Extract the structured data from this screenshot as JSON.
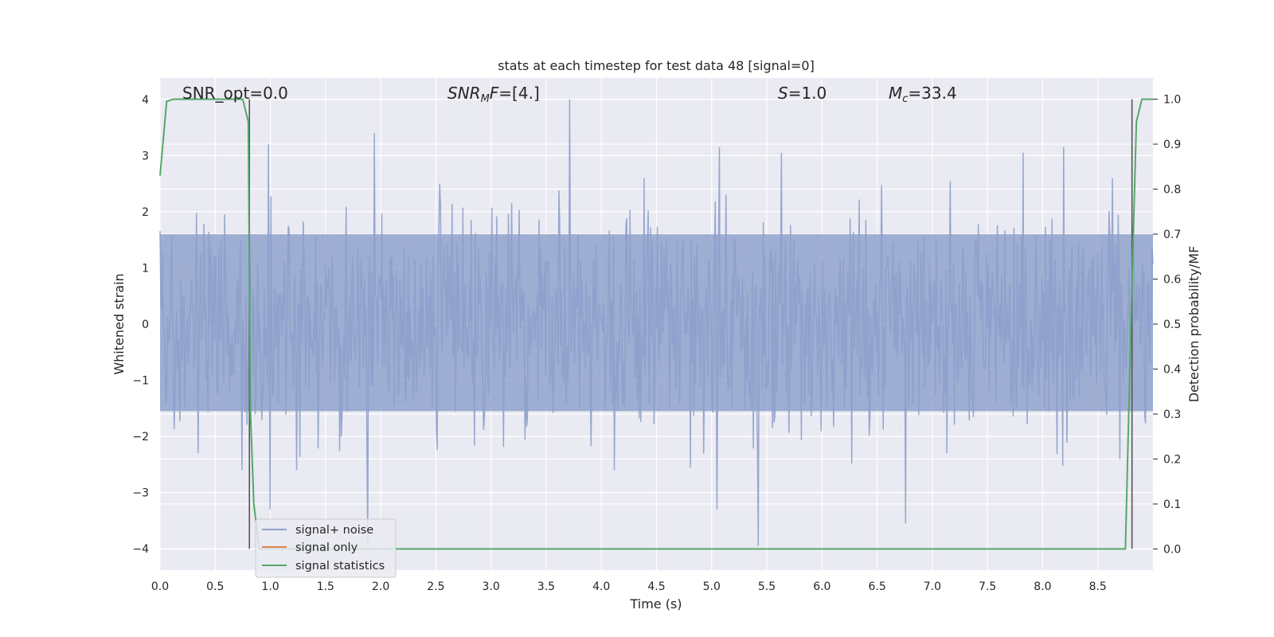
{
  "chart_data": {
    "type": "line",
    "title": "stats at each timestep for test data 48 [signal=0]",
    "xlabel": "Time (s)",
    "ylabel": "Whitened strain",
    "ylabel_right": "Detection probability/MF",
    "xlim": [
      0.0,
      9.0
    ],
    "ylim": [
      -4.38,
      4.38
    ],
    "ylim_right": [
      -0.047,
      1.047
    ],
    "x_ticks": [
      "0.0",
      "0.5",
      "1.0",
      "1.5",
      "2.0",
      "2.5",
      "3.0",
      "3.5",
      "4.0",
      "4.5",
      "5.0",
      "5.5",
      "6.0",
      "6.5",
      "7.0",
      "7.5",
      "8.0",
      "8.5"
    ],
    "y_ticks": [
      "−4",
      "−3",
      "−2",
      "−1",
      "0",
      "1",
      "2",
      "3",
      "4"
    ],
    "y_ticks_right": [
      "0.0",
      "0.1",
      "0.2",
      "0.3",
      "0.4",
      "0.5",
      "0.6",
      "0.7",
      "0.8",
      "0.9",
      "1.0"
    ],
    "grid": true,
    "legend_position": "lower-left",
    "annotations": [
      {
        "text": "SNR_opt=0.0",
        "x": 0.19,
        "y": 4.12
      },
      {
        "text": "SNR_MF=[4.]",
        "x": 2.6,
        "y": 4.12
      },
      {
        "text": "S=1.0",
        "x": 5.6,
        "y": 4.12
      },
      {
        "text": "M_c=33.4",
        "x": 6.6,
        "y": 4.12
      }
    ],
    "vlines": [
      {
        "x": 0.81,
        "y_from": -4.0,
        "y_to": 4.0
      },
      {
        "x": 8.81,
        "y_from": -4.0,
        "y_to": 4.0
      }
    ],
    "series": [
      {
        "name": "signal+ noise",
        "color": "#8da0cb",
        "axis": "left",
        "description": "whitened strain noise, roughly within [-2.5, 2.5] with spikes to about 4.0 and -4.0",
        "samples": 1200,
        "typical_envelope": [
          -1.55,
          1.6
        ],
        "peaks": [
          {
            "x": 0.98,
            "y": 3.2
          },
          {
            "x": 1.94,
            "y": 3.4
          },
          {
            "x": 3.71,
            "y": 4.0
          },
          {
            "x": 5.07,
            "y": 3.15
          },
          {
            "x": 5.63,
            "y": 3.05
          },
          {
            "x": 7.82,
            "y": 3.05
          },
          {
            "x": 8.19,
            "y": 3.15
          },
          {
            "x": 1.88,
            "y": -3.95
          },
          {
            "x": 5.42,
            "y": -3.95
          },
          {
            "x": 1.0,
            "y": -3.3
          },
          {
            "x": 6.76,
            "y": -3.55
          },
          {
            "x": 5.05,
            "y": -3.3
          }
        ]
      },
      {
        "name": "signal only",
        "color": "#dd8452",
        "axis": "left",
        "description": "flat at zero (no signal)",
        "x": [
          0.0,
          9.0
        ],
        "y": [
          0.0,
          0.0
        ]
      },
      {
        "name": "signal statistics",
        "color": "#55a868",
        "axis": "right",
        "x": [
          0.0,
          0.06,
          0.12,
          0.2,
          0.5,
          0.75,
          0.8,
          0.82,
          0.85,
          0.9,
          1.5,
          3.0,
          5.0,
          7.0,
          8.5,
          8.75,
          8.8,
          8.85,
          8.9,
          8.95,
          9.0
        ],
        "y": [
          0.83,
          0.995,
          1.0,
          1.0,
          1.0,
          1.0,
          0.95,
          0.3,
          0.1,
          0.0,
          0.0,
          0.0,
          0.0,
          0.0,
          0.0,
          0.0,
          0.5,
          0.95,
          1.0,
          1.0,
          1.0
        ]
      }
    ]
  }
}
